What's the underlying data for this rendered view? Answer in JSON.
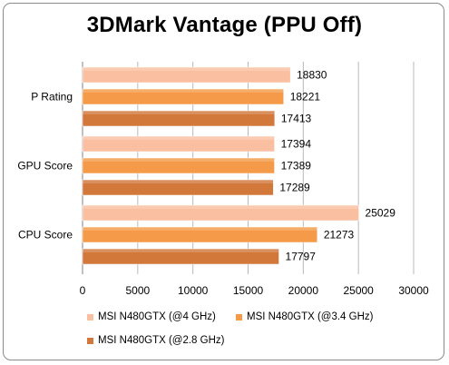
{
  "chart_data": {
    "type": "bar",
    "orientation": "horizontal",
    "title": "3DMark Vantage (PPU Off)",
    "xlabel": "",
    "ylabel": "",
    "categories": [
      "P Rating",
      "GPU Score",
      "CPU Score"
    ],
    "xlim": [
      0,
      30000
    ],
    "xticks": [
      "0",
      "5000",
      "10000",
      "15000",
      "20000",
      "25000",
      "30000"
    ],
    "grid": "vertical",
    "legend_position": "bottom",
    "data_labels": true,
    "series": [
      {
        "name": "MSI N480GTX (@4 GHz)",
        "color": "#f9bfa0",
        "values": [
          18830,
          17394,
          25029
        ]
      },
      {
        "name": "MSI N480GTX (@3.4 GHz)",
        "color": "#f59a49",
        "values": [
          18221,
          17389,
          21273
        ]
      },
      {
        "name": "MSI N480GTX (@2.8 GHz)",
        "color": "#d2783b",
        "values": [
          17413,
          17289,
          17797
        ]
      }
    ]
  }
}
